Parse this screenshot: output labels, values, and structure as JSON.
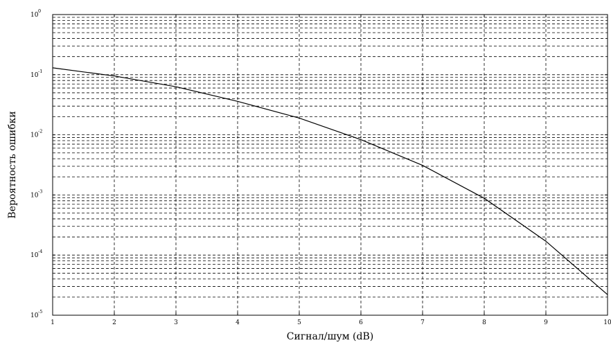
{
  "chart_data": {
    "type": "line",
    "title": "",
    "xlabel": "Сигнал/шум (dB)",
    "ylabel": "Вероятность ошибки",
    "xlim": [
      1,
      10
    ],
    "ylim": [
      1e-05,
      1
    ],
    "y_scale": "log",
    "grid": true,
    "x_ticks": [
      1,
      2,
      3,
      4,
      5,
      6,
      7,
      8,
      9,
      10
    ],
    "x_tick_labels": [
      "1",
      "2",
      "3",
      "4",
      "5",
      "6",
      "7",
      "8",
      "9",
      "10"
    ],
    "y_ticks": [
      {
        "value": 1e-05,
        "base": "10",
        "exponent": "-5"
      },
      {
        "value": 0.0001,
        "base": "10",
        "exponent": "-4"
      },
      {
        "value": 0.001,
        "base": "10",
        "exponent": "-3"
      },
      {
        "value": 0.01,
        "base": "10",
        "exponent": "-2"
      },
      {
        "value": 0.1,
        "base": "10",
        "exponent": "-1"
      },
      {
        "value": 1,
        "base": "10",
        "exponent": "0"
      }
    ],
    "series": [
      {
        "color": "#000000",
        "x": [
          1,
          2,
          3,
          4,
          5,
          6,
          7,
          8,
          9,
          10
        ],
        "y": [
          0.13,
          0.095,
          0.063,
          0.036,
          0.019,
          0.0083,
          0.0031,
          0.00088,
          0.00017,
          2.2e-05
        ]
      }
    ]
  }
}
